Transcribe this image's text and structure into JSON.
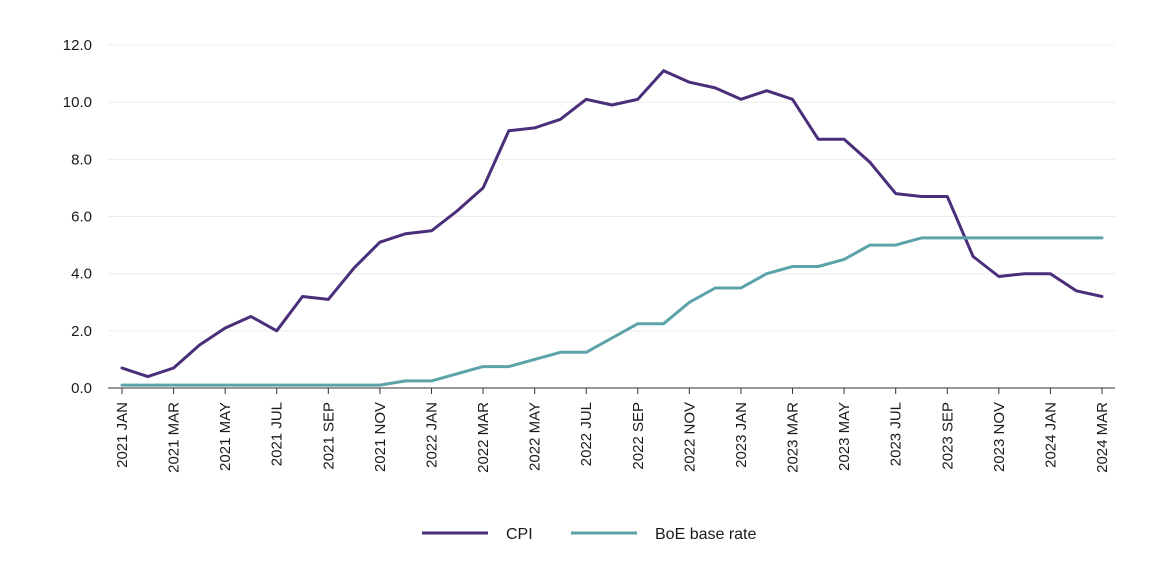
{
  "chart_data": {
    "type": "line",
    "title": "",
    "xlabel": "",
    "ylabel": "",
    "ylim": [
      0,
      12
    ],
    "yticks": [
      "0.0",
      "2.0",
      "4.0",
      "6.0",
      "8.0",
      "10.0",
      "12.0"
    ],
    "grid": true,
    "legend_position": "bottom-center",
    "categories": [
      "2021 JAN",
      "2021 FEB",
      "2021 MAR",
      "2021 APR",
      "2021 MAY",
      "2021 JUN",
      "2021 JUL",
      "2021 AUG",
      "2021 SEP",
      "2021 OCT",
      "2021 NOV",
      "2021 DEC",
      "2022 JAN",
      "2022 FEB",
      "2022 MAR",
      "2022 APR",
      "2022 MAY",
      "2022 JUN",
      "2022 JUL",
      "2022 AUG",
      "2022 SEP",
      "2022 OCT",
      "2022 NOV",
      "2022 DEC",
      "2023 JAN",
      "2023 FEB",
      "2023 MAR",
      "2023 APR",
      "2023 MAY",
      "2023 JUN",
      "2023 JUL",
      "2023 AUG",
      "2023 SEP",
      "2023 OCT",
      "2023 NOV",
      "2023 DEC",
      "2024 JAN",
      "2024 FEB",
      "2024 MAR"
    ],
    "tick_labels": [
      "2021 JAN",
      "2021 MAR",
      "2021 MAY",
      "2021 JUL",
      "2021 SEP",
      "2021 NOV",
      "2022 JAN",
      "2022 MAR",
      "2022 MAY",
      "2022 JUL",
      "2022 SEP",
      "2022 NOV",
      "2023 JAN",
      "2023 MAR",
      "2023 MAY",
      "2023 JUL",
      "2023 SEP",
      "2023 NOV",
      "2024 JAN",
      "2024 MAR"
    ],
    "series": [
      {
        "name": "CPI",
        "color": "#4b2e7a",
        "values": [
          0.7,
          0.4,
          0.7,
          1.5,
          2.1,
          2.5,
          2.0,
          3.2,
          3.1,
          4.2,
          5.1,
          5.4,
          5.5,
          6.2,
          7.0,
          9.0,
          9.1,
          9.4,
          10.1,
          9.9,
          10.1,
          11.1,
          10.7,
          10.5,
          10.1,
          10.4,
          10.1,
          8.7,
          8.7,
          7.9,
          6.8,
          6.7,
          6.7,
          4.6,
          3.9,
          4.0,
          4.0,
          3.4,
          3.2
        ]
      },
      {
        "name": "BoE base rate",
        "color": "#5ba3a9",
        "values": [
          0.1,
          0.1,
          0.1,
          0.1,
          0.1,
          0.1,
          0.1,
          0.1,
          0.1,
          0.1,
          0.1,
          0.25,
          0.25,
          0.5,
          0.75,
          0.75,
          1.0,
          1.25,
          1.25,
          1.75,
          2.25,
          2.25,
          3.0,
          3.5,
          3.5,
          4.0,
          4.25,
          4.25,
          4.5,
          5.0,
          5.0,
          5.25,
          5.25,
          5.25,
          5.25,
          5.25,
          5.25,
          5.25,
          5.25
        ]
      }
    ]
  }
}
